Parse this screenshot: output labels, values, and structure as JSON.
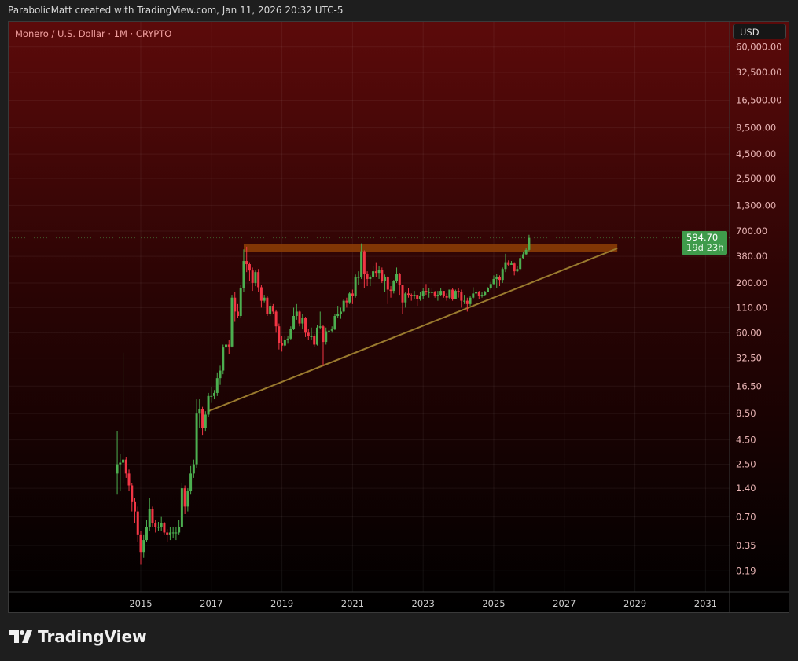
{
  "credit": "ParabolicMatt created with TradingView.com, Jan 11, 2026 20:32 UTC-5",
  "logo_text": "TradingView",
  "chart_data": {
    "type": "candlestick",
    "title": "Monero / U.S. Dollar · 1M · CRYPTO",
    "currency": "USD",
    "scale": "log",
    "grid": true,
    "colors": {
      "up": "#4caf50",
      "down": "#f23645",
      "resistance": "#8a3c06",
      "trendline": "#9a7a2e",
      "background_top": "#5c0a0a",
      "background_bottom": "#000000",
      "last_price_tag": "#3f9b4b"
    },
    "last_price": {
      "value": "594.70",
      "countdown": "19d 23h"
    },
    "y_ticks": [
      "60,000.00",
      "32,500.00",
      "16,500.00",
      "8,500.00",
      "4,500.00",
      "2,500.00",
      "1,300.00",
      "700.00",
      "380.00",
      "200.00",
      "110.00",
      "60.00",
      "32.50",
      "16.50",
      "8.50",
      "4.50",
      "2.50",
      "1.40",
      "0.70",
      "0.35",
      "0.19"
    ],
    "x_ticks": [
      "2015",
      "2017",
      "2019",
      "2021",
      "2023",
      "2025",
      "2027",
      "2029",
      "2031"
    ],
    "start": "2014-05",
    "first_open": 2.0,
    "close": [
      2.5,
      2.6,
      2.8,
      2.0,
      1.5,
      1.0,
      0.8,
      0.45,
      0.3,
      0.4,
      0.55,
      0.85,
      0.6,
      0.55,
      0.55,
      0.6,
      0.48,
      0.45,
      0.48,
      0.48,
      0.48,
      0.55,
      1.4,
      0.9,
      1.3,
      2.0,
      2.5,
      8.5,
      9.5,
      6.0,
      8.3,
      13,
      13,
      14,
      20,
      24,
      42,
      45,
      43,
      140,
      100,
      90,
      175,
      340,
      315,
      270,
      200,
      260,
      180,
      130,
      140,
      95,
      115,
      100,
      70,
      47,
      44,
      50,
      52,
      66,
      90,
      100,
      75,
      85,
      60,
      55,
      55,
      45,
      68,
      70,
      48,
      62,
      63,
      65,
      90,
      95,
      100,
      130,
      125,
      155,
      145,
      230,
      230,
      430,
      250,
      220,
      230,
      265,
      255,
      275,
      210,
      230,
      170,
      165,
      210,
      250,
      190,
      125,
      155,
      150,
      145,
      150,
      135,
      145,
      165,
      160,
      160,
      160,
      145,
      150,
      165,
      145,
      140,
      170,
      135,
      165,
      160,
      130,
      130,
      120,
      140,
      155,
      160,
      145,
      150,
      160,
      175,
      195,
      220,
      230,
      215,
      280,
      330,
      310,
      320,
      265,
      280,
      365,
      400,
      445,
      594.7
    ],
    "high": [
      5.6,
      3.2,
      37,
      3.0,
      2.2,
      1.6,
      1.1,
      0.9,
      0.5,
      0.45,
      0.65,
      1.1,
      0.9,
      0.65,
      0.62,
      0.7,
      0.62,
      0.52,
      0.55,
      0.55,
      0.55,
      0.65,
      1.6,
      1.5,
      1.4,
      2.4,
      2.8,
      12,
      12,
      10,
      9,
      14,
      16,
      15,
      23,
      27,
      45,
      60,
      50,
      150,
      160,
      120,
      190,
      450,
      480,
      330,
      290,
      270,
      280,
      190,
      150,
      145,
      125,
      120,
      105,
      75,
      55,
      55,
      56,
      70,
      110,
      120,
      102,
      95,
      88,
      66,
      68,
      58,
      72,
      100,
      72,
      68,
      72,
      70,
      95,
      115,
      110,
      135,
      140,
      160,
      170,
      245,
      265,
      520,
      440,
      265,
      240,
      300,
      330,
      300,
      290,
      245,
      235,
      185,
      215,
      290,
      255,
      190,
      160,
      175,
      155,
      165,
      150,
      160,
      175,
      195,
      175,
      175,
      165,
      165,
      175,
      165,
      155,
      170,
      175,
      170,
      175,
      170,
      150,
      140,
      145,
      180,
      170,
      165,
      160,
      165,
      180,
      205,
      240,
      250,
      240,
      290,
      405,
      345,
      340,
      330,
      300,
      390,
      420,
      470,
      640
    ],
    "low": [
      1.2,
      1.3,
      1.6,
      1.8,
      1.3,
      0.8,
      0.6,
      0.38,
      0.22,
      0.26,
      0.38,
      0.5,
      0.55,
      0.48,
      0.5,
      0.5,
      0.45,
      0.38,
      0.4,
      0.42,
      0.4,
      0.45,
      0.55,
      0.75,
      0.8,
      1.2,
      1.8,
      2.3,
      6.0,
      5.0,
      5.5,
      7.8,
      11,
      12,
      13,
      17,
      22,
      35,
      36,
      42,
      78,
      85,
      85,
      160,
      260,
      210,
      165,
      185,
      160,
      110,
      125,
      90,
      90,
      95,
      60,
      40,
      38,
      42,
      46,
      50,
      64,
      82,
      70,
      65,
      54,
      50,
      50,
      43,
      44,
      65,
      27,
      45,
      60,
      60,
      64,
      86,
      84,
      98,
      110,
      120,
      120,
      140,
      190,
      220,
      175,
      185,
      185,
      220,
      230,
      220,
      200,
      160,
      120,
      140,
      155,
      200,
      150,
      95,
      110,
      140,
      130,
      135,
      115,
      130,
      135,
      150,
      140,
      150,
      140,
      130,
      145,
      140,
      130,
      135,
      130,
      135,
      140,
      110,
      120,
      100,
      115,
      135,
      145,
      135,
      140,
      145,
      160,
      170,
      190,
      175,
      185,
      200,
      260,
      300,
      310,
      240,
      260,
      270,
      355,
      390,
      430
    ],
    "annotations": {
      "resistance_zone": {
        "from": "2017-12",
        "to": "2028-07",
        "low": 420,
        "high": 510
      },
      "trendline": {
        "from": {
          "date": "2016-12",
          "price": 9.0
        },
        "to": {
          "date": "2028-07",
          "price": 461
        }
      }
    }
  }
}
